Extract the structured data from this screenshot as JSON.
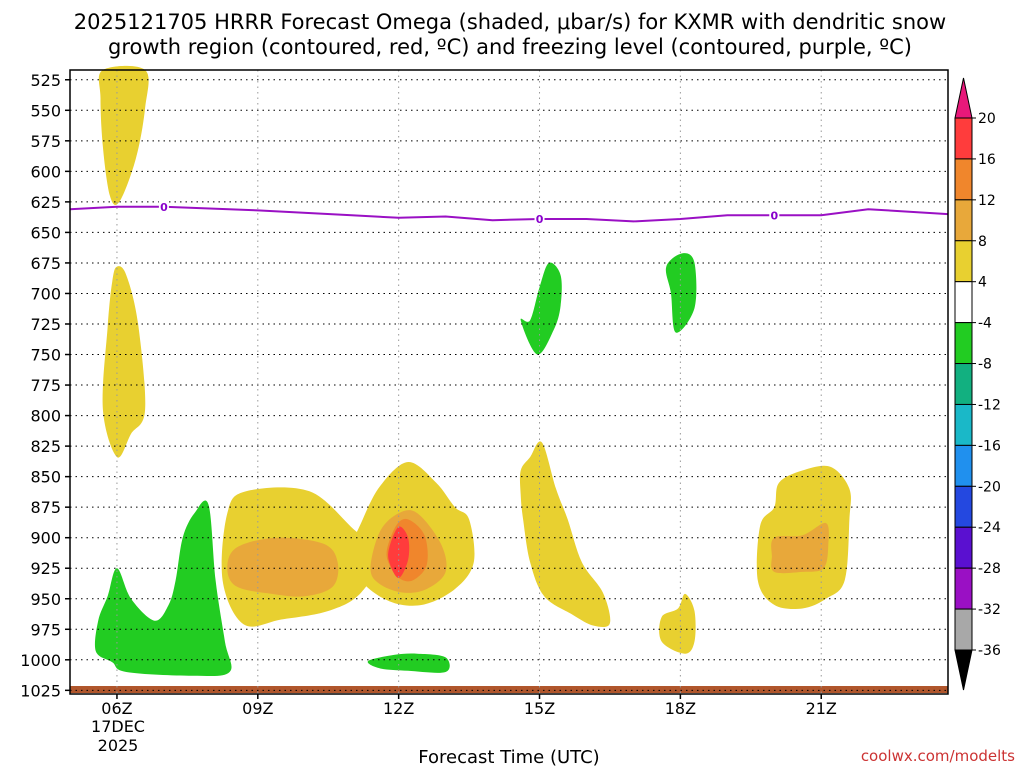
{
  "chart_data": {
    "type": "contour-timeheight",
    "title_line1": "2025121705 HRRR Forecast Omega (shaded, μbar/s) for KXMR with dendritic snow",
    "title_line2": "growth region (contoured, red, ºC) and freezing level (contoured, purple, ºC)",
    "xlabel": "Forecast Time (UTC)",
    "credit": "coolwx.com/modelts",
    "x_range": [
      5,
      23.7
    ],
    "y_range": [
      517,
      1028
    ],
    "x_ticks": [
      {
        "hour": 6,
        "label": "06Z"
      },
      {
        "hour": 9,
        "label": "09Z"
      },
      {
        "hour": 12,
        "label": "12Z"
      },
      {
        "hour": 15,
        "label": "15Z"
      },
      {
        "hour": 18,
        "label": "18Z"
      },
      {
        "hour": 21,
        "label": "21Z"
      }
    ],
    "date_label_1": "17DEC",
    "date_label_2": "2025",
    "y_ticks": [
      "525",
      "550",
      "575",
      "600",
      "625",
      "650",
      "675",
      "700",
      "725",
      "750",
      "775",
      "800",
      "825",
      "850",
      "875",
      "900",
      "925",
      "950",
      "975",
      "1000",
      "1025"
    ],
    "colorbar": {
      "levels": [
        "20",
        "16",
        "12",
        "8",
        "4",
        "-4",
        "-8",
        "-12",
        "-16",
        "-20",
        "-24",
        "-28",
        "-32",
        "-36"
      ],
      "colors": [
        "#ff3c3c",
        "#f0862c",
        "#e8a83a",
        "#e8d030",
        "#ffffff",
        "#22cc22",
        "#12b080",
        "#1ab8c8",
        "#2090ee",
        "#2448e0",
        "#5a10d0",
        "#9a10c4",
        "#a8a8a8"
      ],
      "top_color": "#e8187a",
      "bottom_color": "#000000"
    },
    "freezing_level": {
      "label": "0",
      "color": "#9a10c4",
      "points": [
        [
          5,
          631
        ],
        [
          6,
          629
        ],
        [
          7,
          629
        ],
        [
          9,
          632
        ],
        [
          11,
          636
        ],
        [
          12,
          638
        ],
        [
          13,
          637
        ],
        [
          14,
          640
        ],
        [
          15,
          639
        ],
        [
          16,
          639
        ],
        [
          17,
          641
        ],
        [
          18,
          639
        ],
        [
          19,
          636
        ],
        [
          20,
          636
        ],
        [
          21,
          636
        ],
        [
          22,
          631
        ],
        [
          23.7,
          635
        ]
      ],
      "label_hours": [
        7,
        15,
        20
      ]
    },
    "fills": [
      {
        "name": "band-4-8-upper-06z",
        "color": "#e8d030",
        "pts": [
          [
            5.7,
            517
          ],
          [
            6.6,
            517
          ],
          [
            6.6,
            548
          ],
          [
            6.4,
            590
          ],
          [
            6.05,
            625
          ],
          [
            5.85,
            620
          ],
          [
            5.7,
            580
          ],
          [
            5.65,
            540
          ]
        ]
      },
      {
        "name": "band-4-8-mid-06z",
        "color": "#e8d030",
        "pts": [
          [
            6.0,
            678
          ],
          [
            6.2,
            685
          ],
          [
            6.45,
            725
          ],
          [
            6.6,
            795
          ],
          [
            6.3,
            815
          ],
          [
            6.0,
            834
          ],
          [
            5.7,
            795
          ],
          [
            5.8,
            728
          ],
          [
            5.9,
            690
          ]
        ]
      },
      {
        "name": "band-4-8-09z",
        "color": "#e8d030",
        "pts": [
          [
            8.75,
            862
          ],
          [
            10.1,
            862
          ],
          [
            11.1,
            895
          ],
          [
            11.7,
            910
          ],
          [
            11.2,
            945
          ],
          [
            10.5,
            960
          ],
          [
            9.5,
            967
          ],
          [
            8.7,
            971
          ],
          [
            8.25,
            935
          ],
          [
            8.35,
            880
          ]
        ]
      },
      {
        "name": "band-4-8-12z",
        "color": "#e8d030",
        "pts": [
          [
            11.2,
            888
          ],
          [
            11.6,
            858
          ],
          [
            12.2,
            838
          ],
          [
            12.8,
            855
          ],
          [
            13.2,
            875
          ],
          [
            13.5,
            885
          ],
          [
            13.6,
            920
          ],
          [
            13.2,
            942
          ],
          [
            12.5,
            955
          ],
          [
            11.8,
            952
          ],
          [
            11.2,
            935
          ],
          [
            11.0,
            910
          ]
        ]
      },
      {
        "name": "band-4-8-15z",
        "color": "#e8d030",
        "pts": [
          [
            14.6,
            845
          ],
          [
            14.8,
            834
          ],
          [
            15.05,
            822
          ],
          [
            15.35,
            860
          ],
          [
            15.6,
            885
          ],
          [
            15.9,
            920
          ],
          [
            16.35,
            945
          ],
          [
            16.5,
            970
          ],
          [
            16.15,
            972
          ],
          [
            15.7,
            963
          ],
          [
            15.1,
            948
          ],
          [
            14.8,
            920
          ],
          [
            14.65,
            885
          ],
          [
            14.6,
            865
          ]
        ]
      },
      {
        "name": "band-4-8-18z",
        "color": "#e8d030",
        "pts": [
          [
            17.95,
            958
          ],
          [
            18.1,
            946
          ],
          [
            18.3,
            960
          ],
          [
            18.3,
            985
          ],
          [
            18.1,
            995
          ],
          [
            17.6,
            985
          ],
          [
            17.6,
            965
          ]
        ]
      },
      {
        "name": "band-4-8-21z",
        "color": "#e8d030",
        "pts": [
          [
            20.0,
            875
          ],
          [
            20.1,
            855
          ],
          [
            20.6,
            845
          ],
          [
            21.2,
            842
          ],
          [
            21.6,
            860
          ],
          [
            21.6,
            885
          ],
          [
            21.5,
            935
          ],
          [
            21.1,
            950
          ],
          [
            20.6,
            958
          ],
          [
            20.0,
            955
          ],
          [
            19.65,
            935
          ],
          [
            19.7,
            890
          ]
        ]
      },
      {
        "name": "band-8-12-09z",
        "color": "#e8a83a",
        "pts": [
          [
            8.55,
            908
          ],
          [
            9.4,
            900
          ],
          [
            10.4,
            905
          ],
          [
            10.7,
            920
          ],
          [
            10.6,
            940
          ],
          [
            10.0,
            948
          ],
          [
            9.3,
            946
          ],
          [
            8.55,
            940
          ],
          [
            8.35,
            925
          ]
        ]
      },
      {
        "name": "band-8-12-12z-outer",
        "color": "#e8a83a",
        "pts": [
          [
            11.4,
            925
          ],
          [
            11.6,
            895
          ],
          [
            12.0,
            880
          ],
          [
            12.4,
            880
          ],
          [
            12.9,
            905
          ],
          [
            13.0,
            928
          ],
          [
            12.6,
            942
          ],
          [
            12.1,
            945
          ],
          [
            11.6,
            938
          ]
        ]
      },
      {
        "name": "band-8-12-21z",
        "color": "#e8a83a",
        "pts": [
          [
            20.0,
            900
          ],
          [
            20.6,
            898
          ],
          [
            21.1,
            888
          ],
          [
            21.15,
            906
          ],
          [
            21.05,
            925
          ],
          [
            20.6,
            928
          ],
          [
            20.0,
            928
          ],
          [
            19.95,
            915
          ]
        ]
      },
      {
        "name": "band-12-16-12z",
        "color": "#f0862c",
        "pts": [
          [
            11.75,
            910
          ],
          [
            11.95,
            890
          ],
          [
            12.2,
            885
          ],
          [
            12.55,
            898
          ],
          [
            12.6,
            922
          ],
          [
            12.3,
            935
          ],
          [
            12.0,
            933
          ],
          [
            11.8,
            922
          ]
        ]
      },
      {
        "name": "band-16-20-12z",
        "color": "#ff3c3c",
        "pts": [
          [
            11.8,
            908
          ],
          [
            12.0,
            891
          ],
          [
            12.2,
            900
          ],
          [
            12.2,
            918
          ],
          [
            12.0,
            933
          ],
          [
            11.8,
            920
          ]
        ]
      },
      {
        "name": "band-neg4-neg8-06z",
        "color": "#22cc22",
        "pts": [
          [
            5.55,
            993
          ],
          [
            5.6,
            968
          ],
          [
            5.8,
            948
          ],
          [
            6.0,
            925
          ],
          [
            6.3,
            950
          ],
          [
            6.8,
            968
          ],
          [
            7.1,
            955
          ],
          [
            7.25,
            935
          ],
          [
            7.4,
            900
          ],
          [
            7.65,
            880
          ],
          [
            7.95,
            873
          ],
          [
            8.1,
            935
          ],
          [
            8.3,
            985
          ],
          [
            8.4,
            1010
          ],
          [
            7.6,
            1013
          ],
          [
            6.2,
            1010
          ],
          [
            5.9,
            1002
          ]
        ]
      },
      {
        "name": "band-neg4-neg8-12z",
        "color": "#22cc22",
        "pts": [
          [
            11.35,
            1001
          ],
          [
            11.9,
            996
          ],
          [
            12.4,
            995
          ],
          [
            13.0,
            998
          ],
          [
            13.0,
            1010
          ],
          [
            12.2,
            1009
          ],
          [
            11.6,
            1007
          ]
        ]
      },
      {
        "name": "band-neg4-neg8-15z",
        "color": "#22cc22",
        "pts": [
          [
            14.8,
            722
          ],
          [
            15.0,
            695
          ],
          [
            15.2,
            675
          ],
          [
            15.45,
            685
          ],
          [
            15.45,
            710
          ],
          [
            15.3,
            730
          ],
          [
            14.95,
            750
          ],
          [
            14.6,
            722
          ]
        ]
      },
      {
        "name": "band-neg4-neg8-18z",
        "color": "#22cc22",
        "pts": [
          [
            17.7,
            678
          ],
          [
            18.05,
            667
          ],
          [
            18.3,
            675
          ],
          [
            18.3,
            712
          ],
          [
            17.9,
            732
          ],
          [
            17.8,
            700
          ]
        ]
      }
    ],
    "ground_color": "#b0562c"
  }
}
